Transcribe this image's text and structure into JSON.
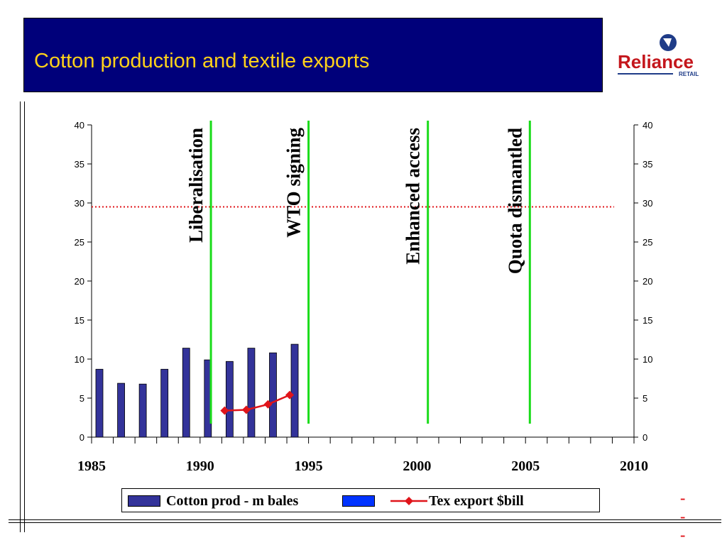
{
  "slide": {
    "title": "Cotton production and textile exports",
    "logo": {
      "name": "Reliance",
      "sub": "RETAIL",
      "color": "#c4161c"
    }
  },
  "colors": {
    "header_bg": "#00007a",
    "title_text": "#ffd21a",
    "bar_fill": "#33339a",
    "blue_swatch": "#0033ff",
    "line_color": "#e0141a",
    "event_line": "#1adc1a"
  },
  "chart_data": {
    "type": "bar",
    "xlim": [
      1985,
      2010
    ],
    "x_tick_labels": [
      "1985",
      "1990",
      "1995",
      "2000",
      "2005",
      "2010"
    ],
    "ylim": [
      0,
      40
    ],
    "y_ticks": [
      "0",
      "5",
      "10",
      "15",
      "20",
      "25",
      "30",
      "35",
      "40"
    ],
    "series": [
      {
        "name": "Cotton prod - m bales",
        "type": "bar",
        "x": [
          1985,
          1986,
          1987,
          1988,
          1989,
          1990,
          1991,
          1992,
          1993,
          1994
        ],
        "values": [
          8.7,
          6.9,
          6.8,
          8.7,
          11.4,
          9.9,
          9.7,
          11.4,
          10.8,
          11.9
        ]
      },
      {
        "name": "Tex export $bill",
        "type": "line",
        "x": [
          1991,
          1992,
          1993,
          1994
        ],
        "values": [
          3.4,
          3.5,
          4.2,
          5.4
        ]
      }
    ],
    "reference_line": {
      "y": 29.5,
      "style": "dotted"
    },
    "events": [
      {
        "x": 1990.5,
        "label": "Liberalisation"
      },
      {
        "x": 1995,
        "label": "WTO signing"
      },
      {
        "x": 2000.5,
        "label": "Enhanced access"
      },
      {
        "x": 2005.2,
        "label": "Quota dismantled"
      }
    ],
    "legend": {
      "position": "bottom"
    }
  }
}
